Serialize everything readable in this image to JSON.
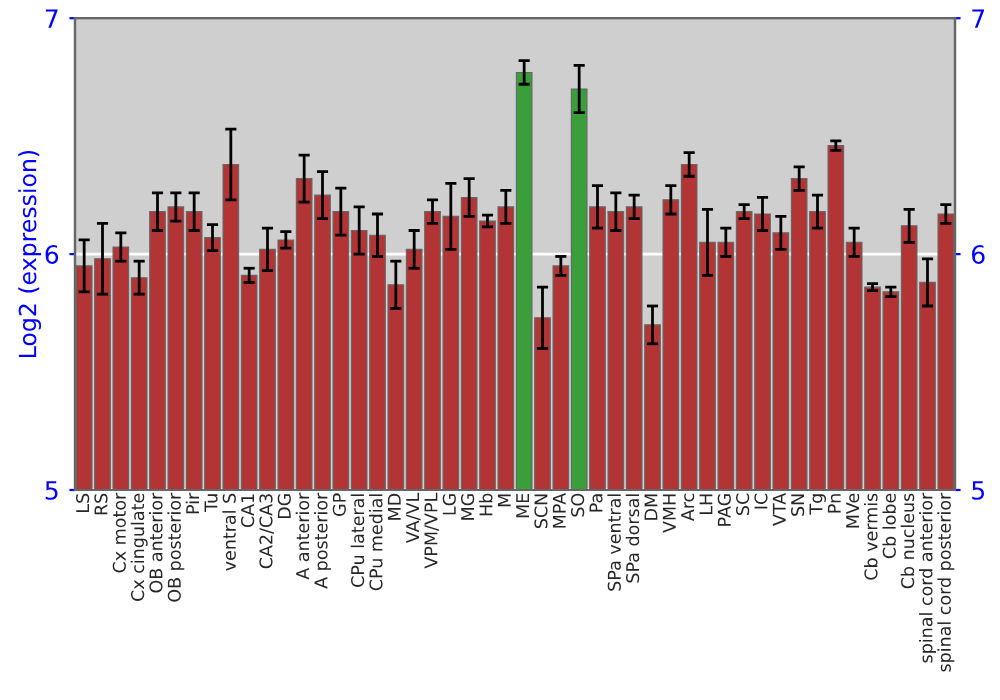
{
  "chart_data": {
    "type": "bar",
    "ylabel": "Log2 (expression)",
    "categories": [
      "LS",
      "RS",
      "Cx motor",
      "Cx cingulate",
      "OB anterior",
      "OB posterior",
      "Pir",
      "Tu",
      "ventral S",
      "CA1",
      "CA2/CA3",
      "DG",
      "A anterior",
      "A posterior",
      "GP",
      "CPu lateral",
      "CPu medial",
      "MD",
      "VA/VL",
      "VPM/VPL",
      "LG",
      "MG",
      "Hb",
      "M",
      "ME",
      "SCN",
      "MPA",
      "SO",
      "Pa",
      "SPa ventral",
      "SPa dorsal",
      "DM",
      "VMH",
      "Arc",
      "LH",
      "PAG",
      "SC",
      "IC",
      "VTA",
      "SN",
      "Tg",
      "Pn",
      "MVe",
      "Cb vermis",
      "Cb lobe",
      "Cb nucleus",
      "spinal cord anterior",
      "spinal cord posterior"
    ],
    "values": [
      5.95,
      5.98,
      6.03,
      5.9,
      6.18,
      6.2,
      6.18,
      6.07,
      6.38,
      5.91,
      6.02,
      6.06,
      6.32,
      6.25,
      6.18,
      6.1,
      6.08,
      5.87,
      6.02,
      6.18,
      6.16,
      6.24,
      6.14,
      6.2,
      6.77,
      5.73,
      5.95,
      6.7,
      6.2,
      6.18,
      6.2,
      5.7,
      6.23,
      6.38,
      6.05,
      6.05,
      6.18,
      6.17,
      6.09,
      6.32,
      6.18,
      6.46,
      6.05,
      5.86,
      5.84,
      6.12,
      5.88,
      6.17
    ],
    "errors": [
      0.11,
      0.15,
      0.06,
      0.07,
      0.08,
      0.06,
      0.08,
      0.055,
      0.15,
      0.03,
      0.09,
      0.035,
      0.1,
      0.1,
      0.1,
      0.1,
      0.09,
      0.1,
      0.08,
      0.05,
      0.14,
      0.08,
      0.025,
      0.07,
      0.05,
      0.13,
      0.04,
      0.1,
      0.09,
      0.08,
      0.05,
      0.08,
      0.06,
      0.05,
      0.14,
      0.06,
      0.03,
      0.07,
      0.07,
      0.05,
      0.07,
      0.02,
      0.06,
      0.015,
      0.02,
      0.07,
      0.1,
      0.04
    ],
    "colors": [
      "#b23434",
      "#b23434",
      "#b23434",
      "#b23434",
      "#b23434",
      "#b23434",
      "#b23434",
      "#b23434",
      "#b23434",
      "#b23434",
      "#b23434",
      "#b23434",
      "#b23434",
      "#b23434",
      "#b23434",
      "#b23434",
      "#b23434",
      "#b23434",
      "#b23434",
      "#b23434",
      "#b23434",
      "#b23434",
      "#b23434",
      "#b23434",
      "#3a9e3a",
      "#b23434",
      "#b23434",
      "#3a9e3a",
      "#b23434",
      "#b23434",
      "#b23434",
      "#b23434",
      "#b23434",
      "#b23434",
      "#b23434",
      "#b23434",
      "#b23434",
      "#b23434",
      "#b23434",
      "#b23434",
      "#b23434",
      "#b23434",
      "#b23434",
      "#b23434",
      "#b23434",
      "#b23434",
      "#b23434",
      "#b23434"
    ],
    "ylim": [
      5,
      7
    ],
    "yticks": [
      5,
      6,
      7
    ],
    "y2lim": [
      5,
      7
    ],
    "y2ticks": [
      5,
      6,
      7
    ],
    "grid": "y"
  }
}
